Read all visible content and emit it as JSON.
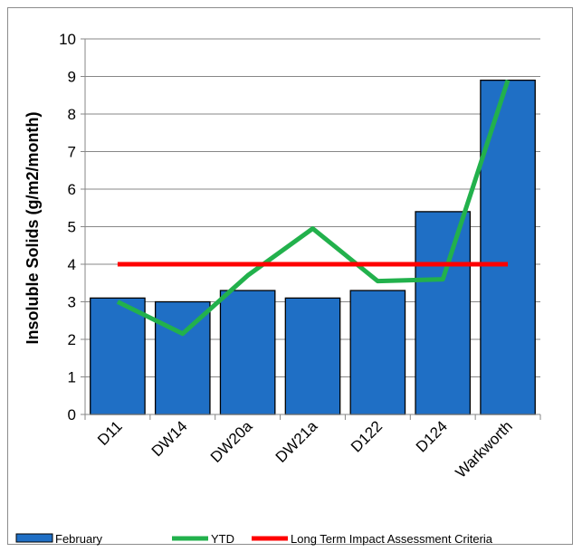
{
  "chart_data": {
    "type": "bar",
    "title": "",
    "xlabel": "",
    "ylabel": "Insoluble Solids (g/m2/month)",
    "ylim": [
      0,
      10
    ],
    "yticks": [
      0,
      1,
      2,
      3,
      4,
      5,
      6,
      7,
      8,
      9,
      10
    ],
    "grid": true,
    "legend_position": "bottom",
    "categories": [
      "D11",
      "DW14",
      "DW20a",
      "DW21a",
      "D122",
      "D124",
      "Warkworth"
    ],
    "series": [
      {
        "name": "February",
        "type": "bar",
        "color": "#1f6fc5",
        "values": [
          3.1,
          3.0,
          3.3,
          3.1,
          3.3,
          5.4,
          8.9
        ]
      },
      {
        "name": "YTD",
        "type": "line",
        "color": "#22b14c",
        "values": [
          3.0,
          2.15,
          3.7,
          4.95,
          3.55,
          3.6,
          8.9
        ]
      },
      {
        "name": "Long Term Impact Assessment Criteria",
        "type": "line",
        "color": "#ff0000",
        "values": [
          4,
          4,
          4,
          4,
          4,
          4,
          4
        ]
      }
    ]
  }
}
